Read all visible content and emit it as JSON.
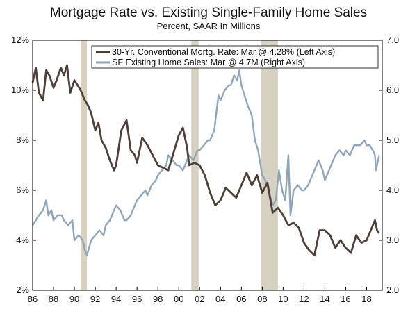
{
  "chart_data": {
    "type": "line",
    "title": "Mortgage Rate vs. Existing Single-Family Home Sales",
    "subtitle": "Percent, SAAR In Millions",
    "xlim": [
      1986,
      2019.5
    ],
    "x_ticks": [
      1986,
      1988,
      1990,
      1992,
      1994,
      1996,
      1998,
      2000,
      2002,
      2004,
      2006,
      2008,
      2010,
      2012,
      2014,
      2016,
      2018
    ],
    "x_tick_labels": [
      "86",
      "88",
      "90",
      "92",
      "94",
      "96",
      "98",
      "00",
      "02",
      "04",
      "06",
      "08",
      "10",
      "12",
      "14",
      "16",
      "18"
    ],
    "y_left": {
      "lim": [
        2,
        12
      ],
      "ticks": [
        2,
        4,
        6,
        8,
        10,
        12
      ],
      "tick_labels": [
        "2%",
        "4%",
        "6%",
        "8%",
        "10%",
        "12%"
      ]
    },
    "y_right": {
      "lim": [
        2.0,
        7.0
      ],
      "ticks": [
        2.0,
        3.0,
        4.0,
        5.0,
        6.0,
        7.0
      ],
      "tick_labels": [
        "2.0",
        "3.0",
        "4.0",
        "5.0",
        "6.0",
        "7.0"
      ]
    },
    "grid": false,
    "legend_position": "top-right",
    "recessions": [
      [
        1990.6,
        1991.2
      ],
      [
        2001.2,
        2001.9
      ],
      [
        2007.9,
        2009.5
      ]
    ],
    "series": [
      {
        "name": "30-Yr. Conventional Mortg. Rate: Mar @ 4.28% (Left Axis)",
        "axis": "left",
        "color": "#4e4038",
        "x": [
          1986.0,
          1986.3,
          1986.6,
          1987.0,
          1987.3,
          1987.6,
          1988.0,
          1988.3,
          1988.7,
          1989.0,
          1989.3,
          1989.6,
          1990.0,
          1990.3,
          1990.6,
          1991.0,
          1991.3,
          1991.6,
          1992.0,
          1992.3,
          1992.6,
          1993.0,
          1993.4,
          1993.8,
          1994.0,
          1994.5,
          1995.0,
          1995.4,
          1995.8,
          1996.0,
          1996.5,
          1997.0,
          1997.5,
          1998.0,
          1998.5,
          1999.0,
          1999.5,
          2000.0,
          2000.4,
          2000.8,
          2001.0,
          2001.5,
          2002.0,
          2002.5,
          2003.0,
          2003.5,
          2004.0,
          2004.5,
          2005.0,
          2005.5,
          2006.0,
          2006.5,
          2007.0,
          2007.5,
          2008.0,
          2008.5,
          2009.0,
          2009.5,
          2010.0,
          2010.5,
          2011.0,
          2011.5,
          2012.0,
          2012.5,
          2013.0,
          2013.5,
          2014.0,
          2014.5,
          2015.0,
          2015.5,
          2016.0,
          2016.5,
          2017.0,
          2017.5,
          2018.0,
          2018.5,
          2018.8,
          2019.0,
          2019.2
        ],
        "values": [
          10.3,
          10.9,
          9.9,
          9.6,
          10.8,
          10.6,
          10.1,
          10.4,
          10.9,
          10.6,
          11.0,
          9.9,
          10.4,
          10.2,
          10.0,
          9.6,
          9.4,
          9.1,
          8.4,
          8.7,
          8.0,
          7.7,
          7.2,
          6.8,
          7.0,
          8.4,
          8.8,
          7.6,
          7.4,
          7.1,
          8.1,
          7.8,
          7.4,
          7.0,
          6.9,
          6.8,
          7.5,
          8.2,
          8.5,
          7.7,
          7.0,
          7.1,
          7.0,
          6.6,
          5.9,
          5.4,
          5.6,
          6.1,
          5.9,
          5.7,
          6.2,
          6.7,
          6.2,
          6.6,
          5.9,
          6.3,
          5.1,
          5.3,
          5.0,
          4.6,
          4.7,
          4.5,
          3.9,
          3.6,
          3.4,
          4.4,
          4.4,
          4.2,
          3.7,
          4.0,
          3.7,
          3.5,
          4.2,
          3.9,
          4.0,
          4.5,
          4.8,
          4.4,
          4.28
        ]
      },
      {
        "name": "SF Existing Home Sales: Mar @ 4.7M (Right Axis)",
        "axis": "right",
        "color": "#8ea6bc",
        "x": [
          1986.0,
          1986.3,
          1986.6,
          1987.0,
          1987.3,
          1987.5,
          1987.8,
          1988.0,
          1988.4,
          1988.8,
          1989.0,
          1989.4,
          1989.8,
          1990.0,
          1990.4,
          1990.8,
          1991.0,
          1991.2,
          1991.6,
          1992.0,
          1992.4,
          1992.8,
          1993.0,
          1993.4,
          1993.8,
          1994.0,
          1994.4,
          1994.8,
          1995.0,
          1995.4,
          1995.8,
          1996.0,
          1996.4,
          1996.8,
          1997.0,
          1997.4,
          1997.8,
          1998.0,
          1998.4,
          1998.8,
          1999.0,
          1999.4,
          1999.8,
          2000.0,
          2000.4,
          2000.8,
          2001.0,
          2001.4,
          2001.8,
          2002.0,
          2002.4,
          2002.8,
          2003.0,
          2003.4,
          2003.8,
          2004.0,
          2004.4,
          2004.8,
          2005.0,
          2005.3,
          2005.6,
          2005.8,
          2006.0,
          2006.3,
          2006.6,
          2007.0,
          2007.3,
          2007.6,
          2008.0,
          2008.3,
          2008.6,
          2009.0,
          2009.3,
          2009.6,
          2009.9,
          2010.2,
          2010.5,
          2010.7,
          2011.0,
          2011.4,
          2011.8,
          2012.0,
          2012.4,
          2012.8,
          2013.0,
          2013.4,
          2013.8,
          2014.0,
          2014.4,
          2014.8,
          2015.0,
          2015.4,
          2015.8,
          2016.0,
          2016.4,
          2016.8,
          2017.0,
          2017.4,
          2017.8,
          2018.0,
          2018.3,
          2018.6,
          2018.8,
          2018.9,
          2019.0,
          2019.2
        ],
        "values": [
          3.3,
          3.4,
          3.5,
          3.6,
          3.8,
          3.5,
          3.6,
          3.4,
          3.5,
          3.5,
          3.4,
          3.3,
          3.4,
          3.0,
          3.1,
          3.0,
          2.8,
          2.7,
          3.0,
          3.1,
          3.2,
          3.1,
          3.3,
          3.4,
          3.6,
          3.7,
          3.6,
          3.4,
          3.4,
          3.5,
          3.7,
          3.8,
          3.9,
          4.0,
          3.9,
          4.1,
          4.2,
          4.3,
          4.4,
          4.5,
          4.7,
          4.6,
          4.5,
          4.5,
          4.4,
          4.6,
          4.7,
          4.6,
          4.8,
          4.8,
          4.9,
          5.0,
          5.0,
          5.2,
          5.9,
          5.8,
          6.0,
          6.1,
          6.1,
          6.3,
          6.2,
          6.4,
          6.1,
          5.9,
          5.7,
          5.5,
          5.0,
          4.8,
          4.3,
          4.2,
          4.0,
          3.7,
          3.8,
          4.4,
          4.0,
          3.8,
          4.7,
          3.5,
          4.0,
          4.1,
          4.0,
          4.0,
          4.1,
          4.3,
          4.4,
          4.6,
          4.4,
          4.2,
          4.4,
          4.6,
          4.7,
          4.8,
          4.7,
          4.8,
          4.7,
          4.9,
          4.9,
          4.9,
          5.0,
          4.9,
          4.9,
          4.8,
          4.7,
          4.4,
          4.5,
          4.7
        ]
      }
    ]
  }
}
